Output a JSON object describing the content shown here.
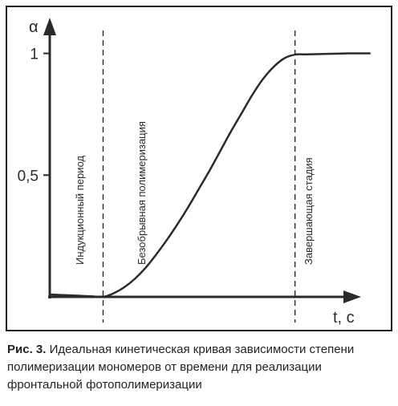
{
  "chart_data": {
    "type": "line",
    "ylabel": "α",
    "xlabel": "t, c",
    "y_ticks": [
      {
        "value": 1,
        "label": "1"
      },
      {
        "value": 0.5,
        "label": "0,5"
      }
    ],
    "phases": [
      {
        "label": "Индукционный период"
      },
      {
        "label": "Безобрывная полимеризация"
      },
      {
        "label": "Завершающая стадия"
      }
    ],
    "phase_boundaries": [
      1,
      4.6
    ],
    "xlim": [
      0,
      6.2
    ],
    "ylim": [
      0,
      1.16
    ],
    "series": [
      {
        "x": [
          0,
          0.2,
          0.4,
          0.6,
          0.8,
          1.0,
          1.2,
          1.4,
          1.6,
          1.8,
          2.0,
          2.2,
          2.4,
          2.6,
          2.8,
          3.0,
          3.2,
          3.4,
          3.6,
          3.8,
          4.0,
          4.2,
          4.4,
          4.6,
          4.8,
          5.0,
          5.2,
          5.4,
          5.6,
          5.8,
          6.0
        ],
        "y": [
          0.01,
          0.008,
          0.006,
          0.004,
          0.002,
          0.0,
          0.015,
          0.04,
          0.075,
          0.12,
          0.175,
          0.235,
          0.3,
          0.37,
          0.445,
          0.52,
          0.6,
          0.68,
          0.755,
          0.83,
          0.895,
          0.945,
          0.98,
          0.995,
          0.996,
          0.997,
          0.998,
          0.999,
          1.0,
          1.0,
          1.0
        ]
      }
    ]
  },
  "caption": {
    "label": "Рис. 3.",
    "text": "Идеальная кинетическая кривая зависимости степени полимеризации мономеров от времени для реализации фронтальной фотополимеризации"
  }
}
